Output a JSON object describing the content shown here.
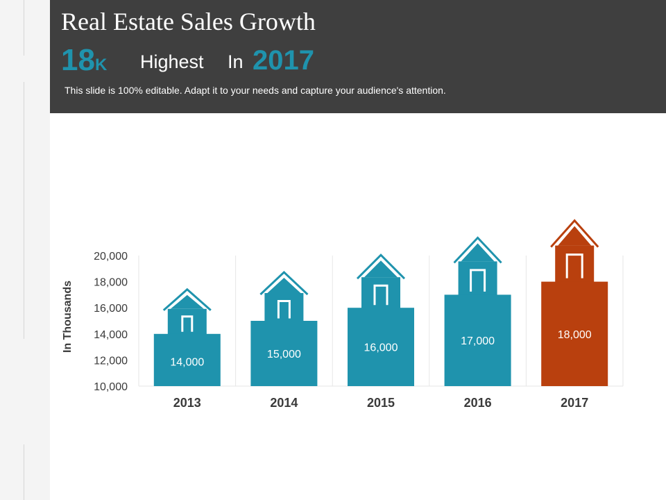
{
  "slide": {
    "title": "Real Estate Sales Growth",
    "highlight_value": "18",
    "highlight_unit": "K",
    "highlight_label": "Highest",
    "highlight_in": "In",
    "highlight_year": "2017",
    "subtitle": "This slide is 100% editable. Adapt it to your needs and capture your audience's attention."
  },
  "colors": {
    "header_bg": "#3f3f3f",
    "accent": "#1f93ad",
    "highlight_bar": "#b9400e",
    "axis_text": "#3a3a3a",
    "grid": "#e6e6e6"
  },
  "chart_data": {
    "type": "bar",
    "categories": [
      "2013",
      "2014",
      "2015",
      "2016",
      "2017"
    ],
    "values": [
      14000,
      15000,
      16000,
      17000,
      18000
    ],
    "value_labels": [
      "14,000",
      "15,000",
      "16,000",
      "17,000",
      "18,000"
    ],
    "ylabel": "In Thousands",
    "ylim": [
      10000,
      20000
    ],
    "yticks": [
      10000,
      12000,
      14000,
      16000,
      18000,
      20000
    ],
    "ytick_labels": [
      "10,000",
      "12,000",
      "14,000",
      "16,000",
      "18,000",
      "20,000"
    ],
    "highlight_index": 4,
    "bar_shape": "house",
    "grid": "vertical",
    "legend": "none"
  }
}
